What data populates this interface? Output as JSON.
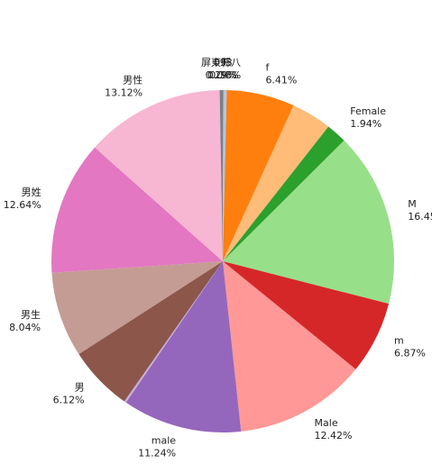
{
  "chart_data": {
    "type": "pie",
    "categories": [
      "093",
      "F",
      "f",
      null,
      "Female",
      "M",
      "m",
      "Male",
      "male",
      null,
      "男",
      "男生",
      "男姓",
      "男性",
      "屏東縣八"
    ],
    "values": [
      0.04,
      0.33,
      6.41,
      3.79,
      1.94,
      16.45,
      6.87,
      12.42,
      11.24,
      0.2,
      6.12,
      8.04,
      12.64,
      13.12,
      0.29
    ],
    "value_labels": [
      "0.04%",
      "0.33%",
      "6.41%",
      null,
      "1.94%",
      "16.45%",
      "6.87%",
      "12.42%",
      "11.24%",
      null,
      "6.12%",
      "8.04%",
      "12.64%",
      "13.12%",
      "0.29%"
    ],
    "colors": [
      "#1f77b4",
      "#aec7e8",
      "#ff7f0e",
      "#ffbb78",
      "#2ca02c",
      "#98df8a",
      "#d62728",
      "#ff9896",
      "#9467bd",
      "#c5b0d5",
      "#8c564b",
      "#c49c94",
      "#e377c2",
      "#f7b6d2",
      "#7f7f7f"
    ]
  }
}
